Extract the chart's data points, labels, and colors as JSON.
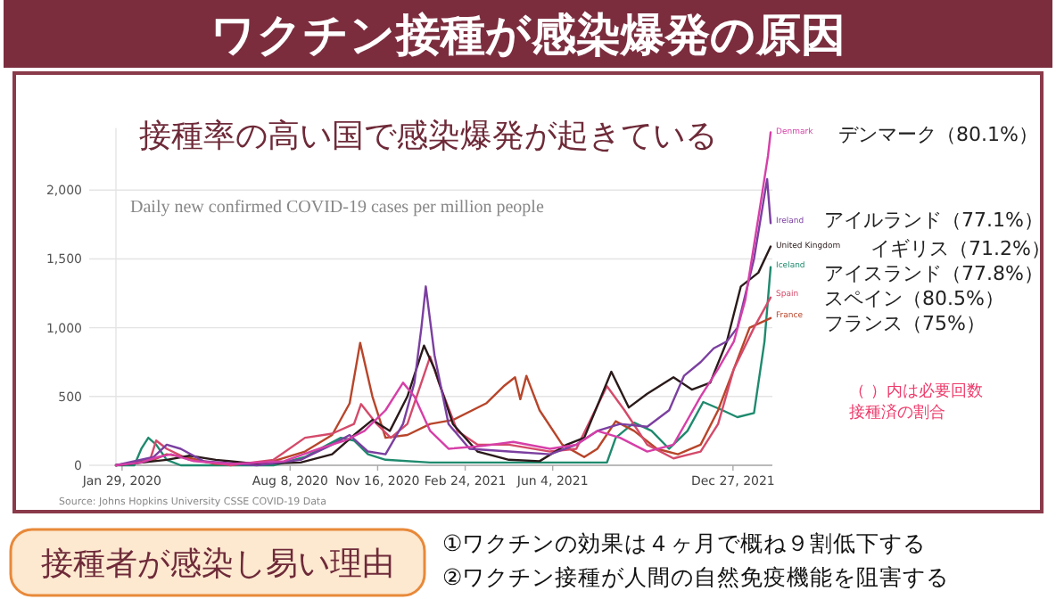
{
  "chart_data": {
    "type": "line",
    "title": "ワクチン接種が感染爆発の原因",
    "subtitle": "接種率の高い国で感染爆発が起きている",
    "annotations": [
      "Daily new confirmed COVID-19 cases per million people",
      "Source: Johns Hopkins University CSSE COVID-19 Data",
      "デンマーク（80.1%）",
      "アイルランド（77.1%）",
      "イギリス（71.2%）",
      "アイスランド（77.8%）",
      "スペイン（80.5%）",
      "フランス（75%）",
      "（ ）内は必要回数",
      "接種済の割合",
      "接種者が感染し易い理由",
      "①ワクチンの効果は４ヶ月で概ね９割低下する",
      "②ワクチン接種が人間の自然免疫機能を阻害する"
    ],
    "xlim": [
      "2020-01-22",
      "2022-02-10"
    ],
    "xticks": [
      {
        "value": "2020-01-29",
        "label": "Jan 29, 2020"
      },
      {
        "value": "2020-08-08",
        "label": "Aug 8, 2020"
      },
      {
        "value": "2020-11-16",
        "label": "Nov 16, 2020"
      },
      {
        "value": "2021-02-24",
        "label": "Feb 24, 2021"
      },
      {
        "value": "2021-06-04",
        "label": "Jun 4, 2021"
      },
      {
        "value": "2021-12-27",
        "label": "Dec 27, 2021"
      }
    ],
    "ylim": [
      0,
      2450
    ],
    "yticks": [
      0,
      500,
      {
        "value": 1000,
        "label": "1,000"
      },
      {
        "value": 1500,
        "label": "1,500"
      },
      {
        "value": 2000,
        "label": "2,000"
      }
    ],
    "grid": "y",
    "series": [
      {
        "name": "Iceland",
        "color": "#1f8a6e",
        "x": [
          "2020-01-22",
          "2020-02-12",
          "2020-02-20",
          "2020-02-28",
          "2020-03-08",
          "2020-03-20",
          "2020-04-05",
          "2020-07-20",
          "2020-08-25",
          "2020-09-20",
          "2020-10-05",
          "2020-10-20",
          "2020-11-05",
          "2020-11-25",
          "2021-01-15",
          "2021-04-01",
          "2021-06-01",
          "2021-08-05",
          "2021-08-15",
          "2021-09-05",
          "2021-09-25",
          "2021-10-15",
          "2021-11-05",
          "2021-11-23",
          "2021-12-15",
          "2022-01-01",
          "2022-01-20",
          "2022-02-01",
          "2022-02-08"
        ],
        "values": [
          0,
          0,
          120,
          200,
          150,
          40,
          0,
          0,
          60,
          150,
          200,
          180,
          80,
          40,
          20,
          20,
          20,
          20,
          200,
          310,
          250,
          120,
          250,
          460,
          400,
          350,
          380,
          900,
          1440
        ]
      },
      {
        "name": "France",
        "color": "#b8452a",
        "x": [
          "2020-01-22",
          "2020-03-01",
          "2020-03-20",
          "2020-04-10",
          "2020-05-15",
          "2020-07-15",
          "2020-08-25",
          "2020-09-25",
          "2020-10-15",
          "2020-10-27",
          "2020-11-10",
          "2020-11-25",
          "2020-12-20",
          "2021-01-15",
          "2021-02-10",
          "2021-03-20",
          "2021-04-10",
          "2021-04-22",
          "2021-04-28",
          "2021-05-05",
          "2021-05-20",
          "2021-06-15",
          "2021-07-10",
          "2021-07-25",
          "2021-08-15",
          "2021-09-05",
          "2021-10-01",
          "2021-10-25",
          "2021-11-20",
          "2021-12-10",
          "2021-12-28",
          "2022-01-15",
          "2022-02-08"
        ],
        "values": [
          0,
          30,
          80,
          60,
          10,
          20,
          100,
          220,
          450,
          890,
          500,
          200,
          220,
          300,
          330,
          450,
          580,
          640,
          480,
          650,
          400,
          150,
          60,
          120,
          320,
          250,
          120,
          80,
          150,
          400,
          700,
          1000,
          1070
        ]
      },
      {
        "name": "Spain",
        "color": "#d44a6a",
        "x": [
          "2020-01-22",
          "2020-03-01",
          "2020-03-08",
          "2020-03-20",
          "2020-04-15",
          "2020-06-01",
          "2020-07-20",
          "2020-08-25",
          "2020-09-25",
          "2020-10-20",
          "2020-10-28",
          "2020-11-15",
          "2020-12-01",
          "2020-12-20",
          "2021-01-15",
          "2021-01-25",
          "2021-02-15",
          "2021-03-10",
          "2021-04-15",
          "2021-06-01",
          "2021-07-01",
          "2021-08-05",
          "2021-08-25",
          "2021-09-20",
          "2021-10-20",
          "2021-11-20",
          "2021-12-10",
          "2021-12-28",
          "2022-01-20",
          "2022-02-08"
        ],
        "values": [
          0,
          40,
          180,
          120,
          40,
          0,
          40,
          200,
          230,
          300,
          445,
          300,
          200,
          300,
          790,
          600,
          250,
          150,
          150,
          100,
          120,
          575,
          400,
          150,
          50,
          100,
          300,
          700,
          1000,
          1220
        ]
      },
      {
        "name": "United Kingdom",
        "color": "#2a1a1a",
        "x": [
          "2020-01-22",
          "2020-03-20",
          "2020-04-15",
          "2020-05-15",
          "2020-07-01",
          "2020-08-20",
          "2020-09-25",
          "2020-10-20",
          "2020-11-10",
          "2020-11-30",
          "2020-12-20",
          "2021-01-08",
          "2021-01-20",
          "2021-02-10",
          "2021-03-10",
          "2021-04-15",
          "2021-05-20",
          "2021-06-20",
          "2021-07-10",
          "2021-08-10",
          "2021-08-30",
          "2021-09-20",
          "2021-10-20",
          "2021-11-10",
          "2021-12-01",
          "2021-12-20",
          "2022-01-05",
          "2022-01-25",
          "2022-02-08"
        ],
        "values": [
          0,
          40,
          70,
          40,
          10,
          20,
          80,
          220,
          330,
          250,
          500,
          870,
          700,
          300,
          100,
          40,
          30,
          150,
          200,
          680,
          420,
          520,
          640,
          550,
          600,
          900,
          1300,
          1400,
          1590
        ]
      },
      {
        "name": "Ireland",
        "color": "#7b3fa0",
        "x": [
          "2020-01-22",
          "2020-03-05",
          "2020-03-20",
          "2020-04-05",
          "2020-05-01",
          "2020-07-01",
          "2020-08-20",
          "2020-09-25",
          "2020-10-15",
          "2020-11-05",
          "2020-11-25",
          "2020-12-15",
          "2020-12-28",
          "2021-01-05",
          "2021-01-10",
          "2021-01-20",
          "2021-02-05",
          "2021-03-01",
          "2021-04-15",
          "2021-06-01",
          "2021-07-01",
          "2021-07-25",
          "2021-08-20",
          "2021-09-20",
          "2021-10-15",
          "2021-11-01",
          "2021-11-20",
          "2021-12-05",
          "2021-12-20",
          "2022-01-01",
          "2022-01-20",
          "2022-02-04",
          "2022-02-08"
        ],
        "values": [
          0,
          60,
          150,
          120,
          30,
          0,
          40,
          150,
          220,
          100,
          80,
          300,
          600,
          1000,
          1300,
          800,
          300,
          120,
          100,
          80,
          150,
          250,
          300,
          280,
          400,
          650,
          750,
          850,
          900,
          1000,
          1500,
          2080,
          1760
        ]
      },
      {
        "name": "Denmark",
        "color": "#d63fa8",
        "x": [
          "2020-01-22",
          "2020-02-20",
          "2020-03-10",
          "2020-03-25",
          "2020-04-20",
          "2020-06-01",
          "2020-08-01",
          "2020-09-10",
          "2020-10-10",
          "2020-11-01",
          "2020-11-25",
          "2020-12-15",
          "2020-12-28",
          "2021-01-15",
          "2021-02-05",
          "2021-03-15",
          "2021-04-20",
          "2021-06-01",
          "2021-07-01",
          "2021-07-25",
          "2021-08-20",
          "2021-09-20",
          "2021-10-20",
          "2021-11-20",
          "2021-12-10",
          "2021-12-28",
          "2022-01-10",
          "2022-01-25",
          "2022-02-05",
          "2022-02-08"
        ],
        "values": [
          0,
          20,
          60,
          80,
          30,
          10,
          30,
          120,
          180,
          250,
          400,
          600,
          500,
          250,
          120,
          140,
          170,
          120,
          150,
          250,
          200,
          100,
          150,
          500,
          700,
          900,
          1200,
          1800,
          2250,
          2420
        ]
      }
    ]
  }
}
